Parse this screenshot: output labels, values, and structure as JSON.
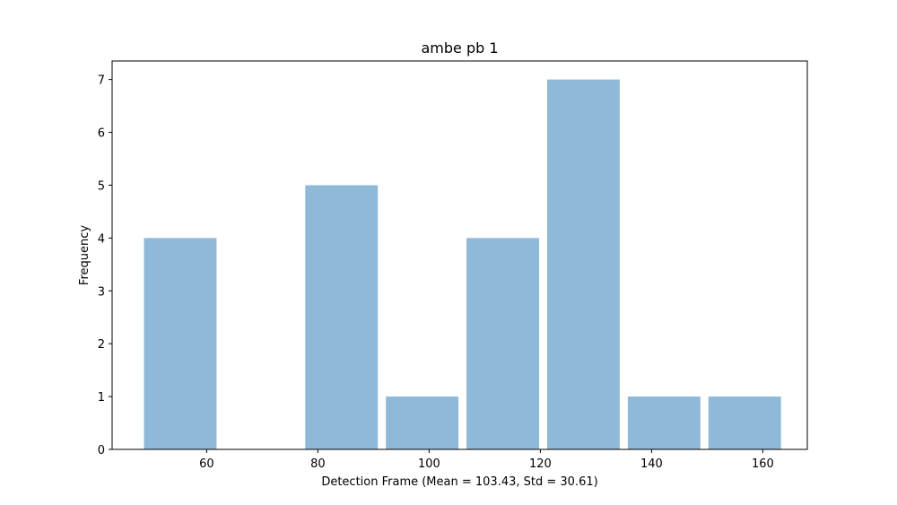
{
  "chart_data": {
    "type": "bar",
    "title": "ambe pb 1",
    "xlabel": "Detection Frame (Mean = 103.43, Std = 30.61)",
    "ylabel": "Frequency",
    "bin_edges": [
      48.0,
      62.5,
      77.0,
      91.5,
      106.0,
      120.5,
      135.0,
      149.5,
      164.0
    ],
    "values": [
      4,
      0,
      5,
      1,
      4,
      7,
      1,
      1
    ],
    "xlim": [
      43,
      168
    ],
    "ylim": [
      0,
      7.35
    ],
    "xticks": [
      60,
      80,
      100,
      120,
      140,
      160
    ],
    "yticks": [
      0,
      1,
      2,
      3,
      4,
      5,
      6,
      7
    ],
    "bar_color": "#8fb9d8",
    "grid": false
  }
}
